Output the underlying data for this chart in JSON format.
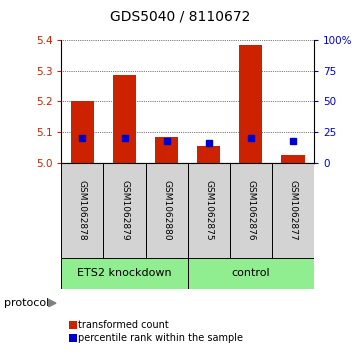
{
  "title": "GDS5040 / 8110672",
  "samples": [
    "GSM1062878",
    "GSM1062879",
    "GSM1062880",
    "GSM1062875",
    "GSM1062876",
    "GSM1062877"
  ],
  "red_values": [
    5.2,
    5.285,
    5.085,
    5.055,
    5.385,
    5.025
  ],
  "blue_values_pct": [
    20,
    20,
    18,
    16,
    20,
    18
  ],
  "ylim": [
    5.0,
    5.4
  ],
  "yticks": [
    5.0,
    5.1,
    5.2,
    5.3,
    5.4
  ],
  "y2lim": [
    0,
    100
  ],
  "y2ticks": [
    0,
    25,
    50,
    75,
    100
  ],
  "y2ticklabels": [
    "0",
    "25",
    "50",
    "75",
    "100%"
  ],
  "protocol_label": "protocol",
  "bar_color": "#cc2200",
  "dot_color": "#0000cc",
  "bg_color": "#d3d3d3",
  "green_color": "#90ee90",
  "left_tick_color": "#cc2200",
  "right_tick_color": "#0000cc",
  "legend_red_label": "transformed count",
  "legend_blue_label": "percentile rank within the sample",
  "bar_width": 0.55,
  "base": 5.0,
  "title_fontsize": 10,
  "tick_fontsize": 7.5,
  "sample_fontsize": 6.5,
  "group_fontsize": 8,
  "legend_fontsize": 7,
  "protocol_fontsize": 8
}
